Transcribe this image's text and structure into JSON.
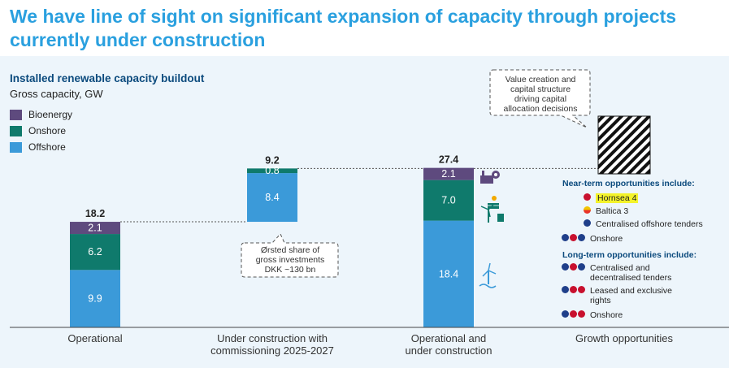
{
  "headline": "We have line of sight on significant expansion of capacity through projects currently under construction",
  "chart_data": {
    "type": "bar",
    "title": "Installed renewable capacity buildout",
    "ylabel": "Gross capacity, GW",
    "categories": [
      "Operational",
      "Under construction with commissioning 2025-2027",
      "Operational and under construction",
      "Growth opportunities"
    ],
    "series": [
      {
        "name": "Offshore",
        "values": [
          9.9,
          8.4,
          18.4,
          null
        ]
      },
      {
        "name": "Onshore",
        "values": [
          6.2,
          0.8,
          7.0,
          null
        ]
      },
      {
        "name": "Bioenergy",
        "values": [
          2.1,
          null,
          2.1,
          null
        ]
      }
    ],
    "totals": [
      18.2,
      9.2,
      27.4,
      null
    ],
    "colors": {
      "Offshore": "#3b9ad9",
      "Onshore": "#0f7a6c",
      "Bioenergy": "#5e4a7e"
    },
    "category_label_lines": [
      [
        "Operational"
      ],
      [
        "Under construction with",
        "commissioning 2025-2027"
      ],
      [
        "Operational and",
        "under construction"
      ],
      [
        "Growth opportunities"
      ]
    ]
  },
  "legend": [
    {
      "label": "Bioenergy",
      "color": "#5e4a7e"
    },
    {
      "label": "Onshore",
      "color": "#0f7a6c"
    },
    {
      "label": "Offshore",
      "color": "#3b9ad9"
    }
  ],
  "callouts": {
    "investment_lines": [
      "Ørsted share of",
      "gross investments",
      "DKK ~130 bn"
    ],
    "value_lines": [
      "Value creation and",
      "capital structure",
      "driving capital",
      "allocation decisions"
    ]
  },
  "opportunities": {
    "near_term_heading": "Near-term opportunities include:",
    "near_term": [
      {
        "label": "Hornsea 4",
        "highlighted": true,
        "flags": [
          "#c8102e"
        ]
      },
      {
        "label": "Baltica 3",
        "highlighted": false,
        "flags": [
          "#e8332a"
        ]
      },
      {
        "label": "Centralised offshore tenders",
        "highlighted": false,
        "flags": [
          "#1f3f8a"
        ]
      },
      {
        "label": "Onshore",
        "highlighted": false,
        "flags": [
          "#1f3f8a",
          "#c8102e",
          "#c8102e"
        ]
      }
    ],
    "long_term_heading": "Long-term opportunities include:",
    "long_term": [
      {
        "label_lines": [
          "Centralised and",
          "decentralised tenders"
        ],
        "flags": [
          "#1f3f8a",
          "#c8102e",
          "#1f3f8a"
        ]
      },
      {
        "label_lines": [
          "Leased and exclusive",
          "rights"
        ],
        "flags": [
          "#1f3f8a",
          "#c8102e",
          "#c8102e"
        ]
      },
      {
        "label_lines": [
          "Onshore"
        ],
        "flags": [
          "#1f3f8a",
          "#c8102e",
          "#c8102e"
        ]
      }
    ]
  },
  "icons": [
    "factory-icon",
    "solar-panel-icon",
    "onshore-wind-icon",
    "offshore-wind-icon"
  ]
}
